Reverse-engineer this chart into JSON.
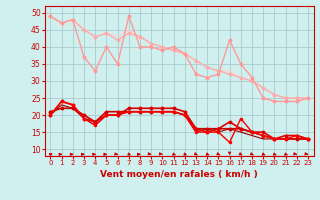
{
  "xlabel": "Vent moyen/en rafales ( km/h )",
  "bg_color": "#cff0ee",
  "grid_color": "#aacccc",
  "xlim": [
    -0.5,
    23.5
  ],
  "ylim": [
    8,
    52
  ],
  "yticks": [
    10,
    15,
    20,
    25,
    30,
    35,
    40,
    45,
    50
  ],
  "xticks": [
    0,
    1,
    2,
    3,
    4,
    5,
    6,
    7,
    8,
    9,
    10,
    11,
    12,
    13,
    14,
    15,
    16,
    17,
    18,
    19,
    20,
    21,
    22,
    23
  ],
  "series": [
    {
      "x": [
        0,
        1,
        2,
        3,
        4,
        5,
        6,
        7,
        8,
        9,
        10,
        11,
        12,
        13,
        14,
        15,
        16,
        17,
        18,
        19,
        20,
        21,
        22,
        23
      ],
      "y": [
        49,
        47,
        48,
        37,
        33,
        40,
        35,
        49,
        40,
        40,
        39,
        40,
        38,
        32,
        31,
        32,
        42,
        35,
        31,
        25,
        24,
        24,
        24,
        25
      ],
      "color": "#ff9999",
      "lw": 1.0,
      "marker": "o",
      "ms": 1.8,
      "zorder": 4
    },
    {
      "x": [
        0,
        1,
        2,
        3,
        4,
        5,
        6,
        7,
        8,
        9,
        10,
        11,
        12,
        13,
        14,
        15,
        16,
        17,
        18,
        19,
        20,
        21,
        22,
        23
      ],
      "y": [
        49,
        47,
        48,
        45,
        43,
        44,
        42,
        44,
        43,
        41,
        40,
        39,
        38,
        36,
        34,
        33,
        32,
        31,
        30,
        28,
        26,
        25,
        25,
        25
      ],
      "color": "#ffaaaa",
      "lw": 1.0,
      "marker": "o",
      "ms": 1.8,
      "zorder": 3
    },
    {
      "x": [
        0,
        1,
        2,
        3,
        4,
        5,
        6,
        7,
        8,
        9,
        10,
        11,
        12,
        13,
        14,
        15,
        16,
        17,
        18,
        19,
        20,
        21,
        22,
        23
      ],
      "y": [
        49,
        47,
        48,
        45,
        43,
        44,
        43,
        45,
        43,
        41,
        40,
        39,
        38,
        36,
        34,
        33,
        33,
        31,
        30,
        28,
        26,
        25,
        25,
        25
      ],
      "color": "#ffcccc",
      "lw": 0.8,
      "marker": null,
      "ms": 0,
      "zorder": 2
    },
    {
      "x": [
        0,
        1,
        2,
        3,
        4,
        5,
        6,
        7,
        8,
        9,
        10,
        11,
        12,
        13,
        14,
        15,
        16,
        17,
        18,
        19,
        20,
        21,
        22,
        23
      ],
      "y": [
        20,
        24,
        23,
        19,
        18,
        20,
        20,
        22,
        22,
        22,
        22,
        22,
        21,
        16,
        15,
        16,
        18,
        16,
        15,
        15,
        13,
        14,
        14,
        13
      ],
      "color": "#dd0000",
      "lw": 1.2,
      "marker": "o",
      "ms": 1.8,
      "zorder": 6
    },
    {
      "x": [
        0,
        1,
        2,
        3,
        4,
        5,
        6,
        7,
        8,
        9,
        10,
        11,
        12,
        13,
        14,
        15,
        16,
        17,
        18,
        19,
        20,
        21,
        22,
        23
      ],
      "y": [
        21,
        22,
        22,
        20,
        18,
        21,
        21,
        21,
        21,
        21,
        21,
        21,
        20,
        16,
        16,
        16,
        16,
        16,
        15,
        14,
        13,
        13,
        13,
        13
      ],
      "color": "#cc0000",
      "lw": 1.2,
      "marker": "o",
      "ms": 1.8,
      "zorder": 5
    },
    {
      "x": [
        0,
        1,
        2,
        3,
        4,
        5,
        6,
        7,
        8,
        9,
        10,
        11,
        12,
        13,
        14,
        15,
        16,
        17,
        18,
        19,
        20,
        21,
        22,
        23
      ],
      "y": [
        20,
        24,
        23,
        19,
        17,
        20,
        20,
        21,
        21,
        21,
        21,
        21,
        20,
        15,
        15,
        15,
        12,
        19,
        15,
        14,
        13,
        13,
        14,
        13
      ],
      "color": "#ff0000",
      "lw": 1.0,
      "marker": "o",
      "ms": 1.5,
      "zorder": 7
    },
    {
      "x": [
        0,
        1,
        2,
        3,
        4,
        5,
        6,
        7,
        8,
        9,
        10,
        11,
        12,
        13,
        14,
        15,
        16,
        17,
        18,
        19,
        20,
        21,
        22,
        23
      ],
      "y": [
        20,
        23,
        22,
        19,
        17,
        20,
        20,
        21,
        21,
        21,
        21,
        21,
        20,
        15,
        16,
        15,
        16,
        15,
        14,
        13,
        13,
        13,
        13,
        13
      ],
      "color": "#990000",
      "lw": 0.8,
      "marker": null,
      "ms": 0,
      "zorder": 2
    }
  ],
  "arrow_angles": [
    45,
    0,
    0,
    0,
    0,
    0,
    -20,
    -45,
    0,
    -30,
    -30,
    -45,
    -45,
    -60,
    -45,
    -60,
    -90,
    -60,
    -60,
    -45,
    -45,
    -45,
    -30,
    -30
  ],
  "arrow_color": "#cc0000",
  "xlabel_color": "#cc0000",
  "tick_color": "#cc0000",
  "spine_color": "#cc0000"
}
